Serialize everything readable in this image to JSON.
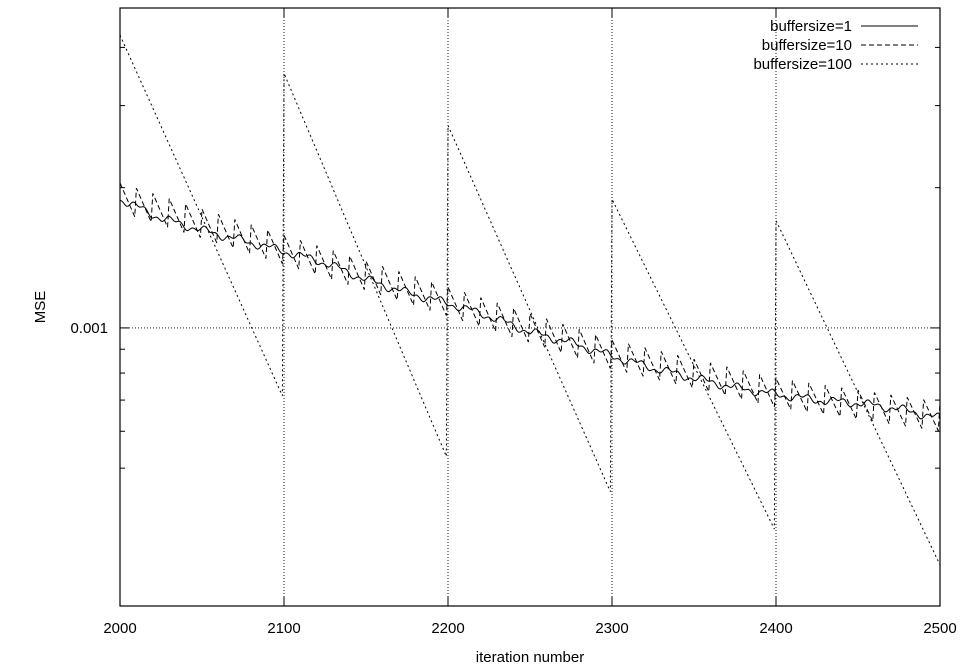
{
  "chart_data": {
    "type": "line",
    "title": "",
    "xlabel": "iteration number",
    "ylabel": "MSE",
    "xlim": [
      2000,
      2500
    ],
    "ylim": [
      0.000253,
      0.00486
    ],
    "y_scale": "log",
    "x_ticks": [
      2000,
      2100,
      2200,
      2300,
      2400,
      2500
    ],
    "x_tick_labels": [
      "2000",
      "2100",
      "2200",
      "2300",
      "2400",
      "2500"
    ],
    "y_labeled_ticks": [
      0.001
    ],
    "y_labeled_tick_labels": [
      "0.001"
    ],
    "y_minor_ticks": [
      0.0005,
      0.0006,
      0.0007,
      0.0008,
      0.0009,
      0.002,
      0.003,
      0.004
    ],
    "grid": "dotted at x = 2100, 2200, 2300, 2400 and y = 0.001",
    "legend_position": "top-right",
    "series": [
      {
        "name": "buffersize=1",
        "style": "solid",
        "x": [
          2000,
          2025,
          2050,
          2075,
          2100,
          2125,
          2150,
          2175,
          2200,
          2225,
          2250,
          2275,
          2300,
          2325,
          2350,
          2375,
          2400,
          2425,
          2450,
          2475,
          2500
        ],
        "values": [
          0.00189,
          0.00172,
          0.00162,
          0.00154,
          0.00146,
          0.00138,
          0.00127,
          0.00119,
          0.00113,
          0.00106,
          0.00098,
          0.00093,
          0.00087,
          0.00082,
          0.00078,
          0.000745,
          0.00072,
          0.0007,
          0.00069,
          0.00067,
          0.00064
        ]
      },
      {
        "name": "buffersize=10",
        "style": "dashed",
        "x": [
          2000,
          2100,
          2200,
          2300,
          2400,
          2500
        ],
        "values": [
          0.00189,
          0.00146,
          0.00113,
          0.00087,
          0.00072,
          0.00064
        ],
        "oscillation": "sawtooth with period of 10 iterations, amplitude about ±7%"
      },
      {
        "name": "buffersize=100",
        "style": "dotted",
        "x": [
          2000,
          2099,
          2100,
          2199,
          2200,
          2299,
          2300,
          2399,
          2400,
          2500
        ],
        "values": [
          0.00425,
          0.000715,
          0.00352,
          0.00053,
          0.00272,
          0.000445,
          0.00189,
          0.00037,
          0.0017,
          0.00031
        ]
      }
    ]
  }
}
